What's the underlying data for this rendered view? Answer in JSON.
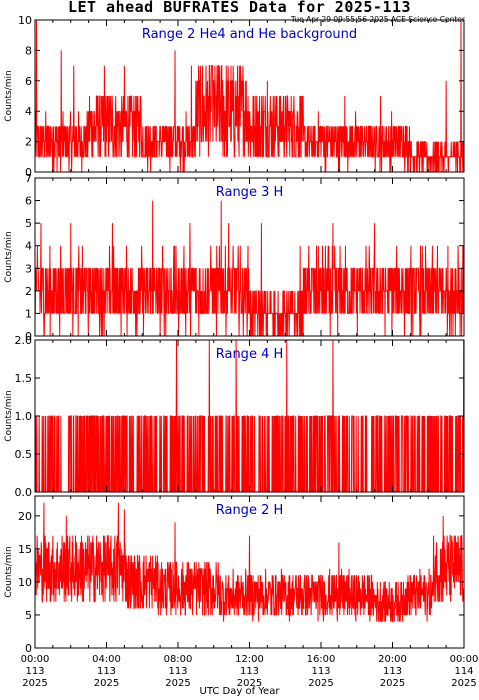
{
  "title": "LET ahead BUFRATES Data for 2025-113",
  "stamp": "Tue Apr 29 09:55:56 2025 ACE Science Center",
  "xlabel": "UTC Day of Year",
  "colors": {
    "series": "#ff0000",
    "panel_label": "#0000cc",
    "axis": "#000000"
  },
  "chart_data": [
    {
      "type": "line",
      "title": "Range 2 He4 and He background",
      "ylabel": "Counts/min",
      "ylim": [
        0,
        10
      ],
      "yticks": [
        "0",
        "2",
        "4",
        "6",
        "8",
        "10"
      ],
      "sample_interval_min": 1,
      "baseline": [
        2,
        3,
        2,
        4,
        3,
        2,
        2,
        1
      ],
      "peaks": [
        [
          5,
          10
        ],
        [
          88,
          8
        ],
        [
          130,
          7
        ],
        [
          233,
          7
        ],
        [
          300,
          7
        ],
        [
          470,
          8
        ],
        [
          525,
          7
        ],
        [
          595,
          7
        ],
        [
          700,
          6
        ],
        [
          780,
          6
        ],
        [
          900,
          5
        ],
        [
          1040,
          5
        ],
        [
          1160,
          5
        ],
        [
          1380,
          6
        ],
        [
          1430,
          10
        ]
      ]
    },
    {
      "type": "line",
      "title": "Range 3 H",
      "ylabel": "Counts/min",
      "ylim": [
        0,
        7
      ],
      "yticks": [
        "0",
        "1",
        "2",
        "3",
        "4",
        "5",
        "6",
        "7"
      ],
      "sample_interval_min": 1,
      "baseline": [
        2,
        2,
        2,
        2,
        1,
        2,
        2,
        2
      ],
      "peaks": [
        [
          20,
          5
        ],
        [
          120,
          5
        ],
        [
          260,
          5
        ],
        [
          395,
          6
        ],
        [
          520,
          5
        ],
        [
          625,
          6
        ],
        [
          650,
          5
        ],
        [
          760,
          5
        ],
        [
          890,
          4
        ],
        [
          1000,
          5
        ],
        [
          1140,
          5
        ],
        [
          1300,
          4
        ],
        [
          1420,
          4
        ]
      ]
    },
    {
      "type": "line",
      "title": "Range 4 H",
      "ylabel": "Counts/min",
      "ylim": [
        0,
        2
      ],
      "yticks": [
        "0.0",
        "0.5",
        "1.0",
        "1.5",
        "2.0"
      ],
      "sample_interval_min": 1,
      "baseline": [
        0.3,
        0.3,
        0.3,
        0.3,
        0.3,
        0.3,
        0.3,
        0.3
      ],
      "peaks": [
        [
          475,
          2
        ],
        [
          585,
          2
        ],
        [
          675,
          2
        ],
        [
          845,
          2
        ],
        [
          1000,
          2
        ],
        [
          1439,
          2
        ]
      ]
    },
    {
      "type": "line",
      "title": "Range 2 H",
      "ylabel": "Counts/min",
      "ylim": [
        0,
        23
      ],
      "yticks": [
        "0",
        "5",
        "10",
        "15",
        "20"
      ],
      "sample_interval_min": 1,
      "baseline": [
        12,
        12,
        12,
        10,
        9,
        9,
        8,
        8,
        8,
        8,
        8,
        7,
        8,
        12
      ],
      "peaks": [
        [
          30,
          22
        ],
        [
          105,
          20
        ],
        [
          280,
          22
        ],
        [
          300,
          21
        ],
        [
          470,
          19
        ],
        [
          720,
          17
        ],
        [
          1020,
          16
        ],
        [
          1370,
          20
        ],
        [
          1420,
          17
        ]
      ]
    }
  ],
  "xaxis": {
    "ticks": [
      {
        "time": "00:00",
        "day": "113",
        "year": "2025"
      },
      {
        "time": "04:00",
        "day": "113",
        "year": "2025"
      },
      {
        "time": "08:00",
        "day": "113",
        "year": "2025"
      },
      {
        "time": "12:00",
        "day": "113",
        "year": "2025"
      },
      {
        "time": "16:00",
        "day": "113",
        "year": "2025"
      },
      {
        "time": "20:00",
        "day": "113",
        "year": "2025"
      },
      {
        "time": "00:00",
        "day": "114",
        "year": "2025"
      }
    ],
    "range_min": [
      0,
      1440
    ]
  }
}
